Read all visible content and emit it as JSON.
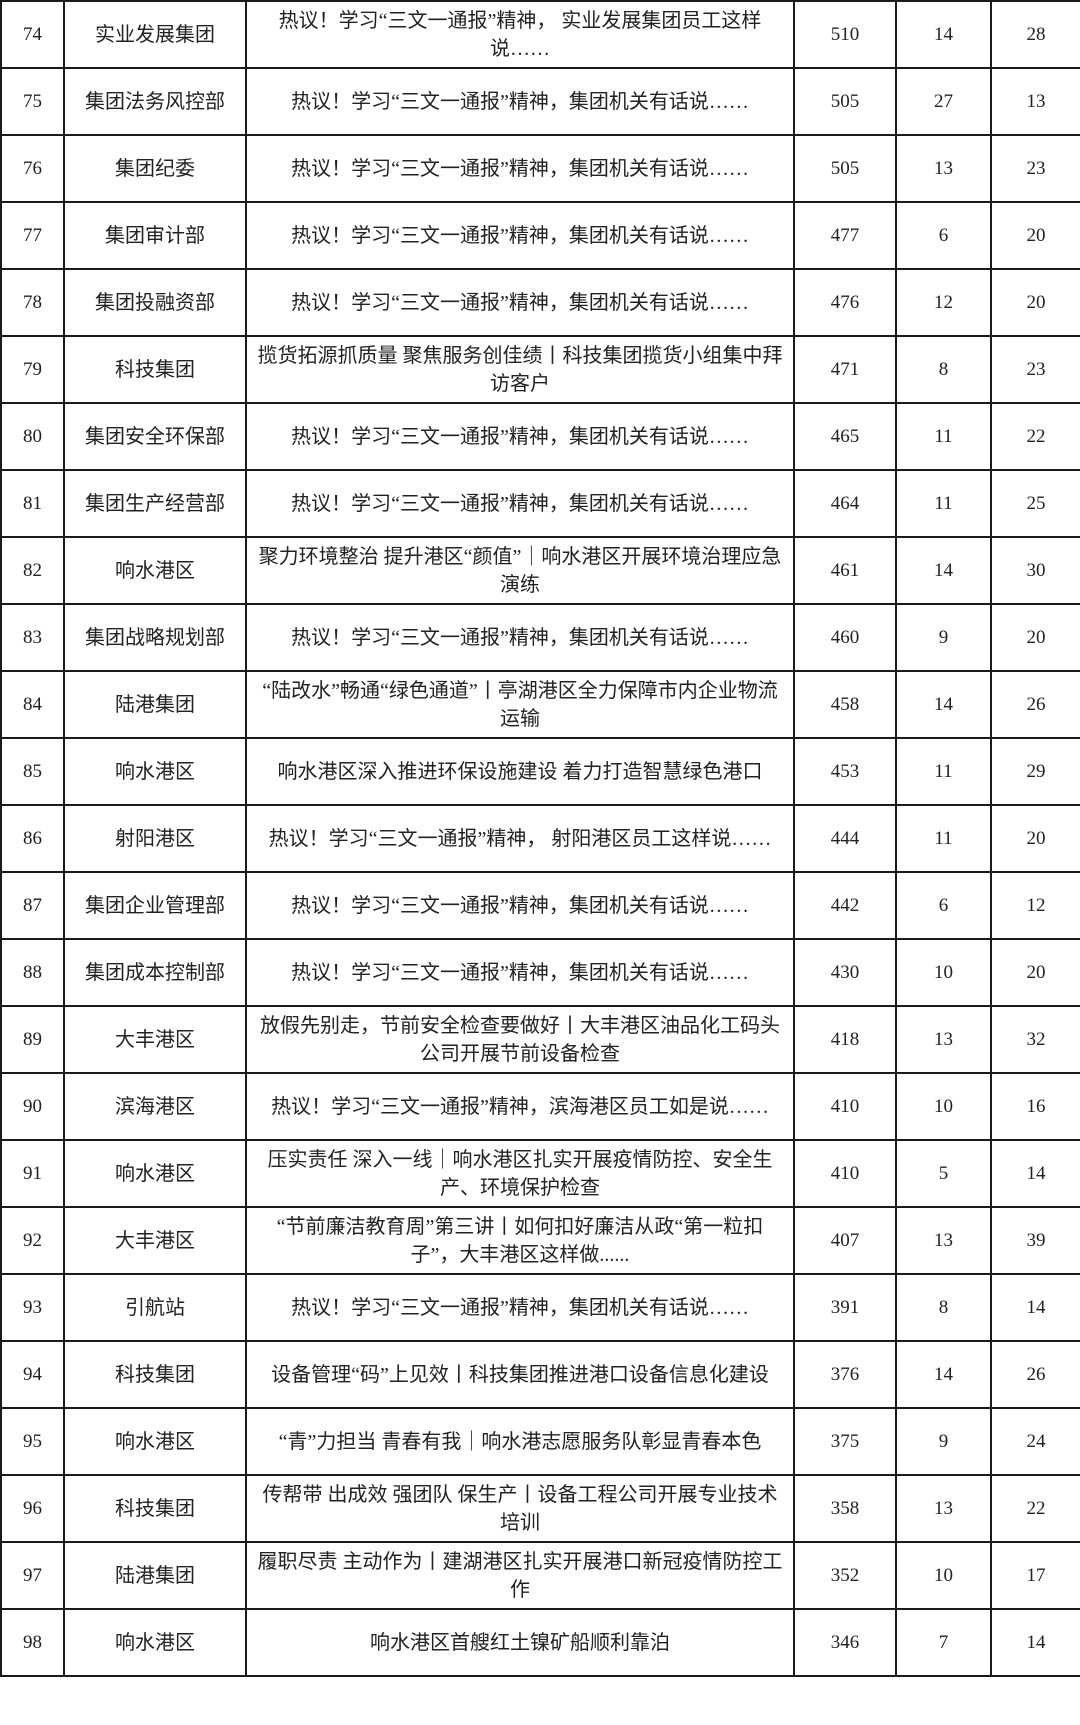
{
  "rows": [
    {
      "rank": "74",
      "unit": "实业发展集团",
      "title": "热议！学习“三文一通报”精神， 实业发展集团员工这样说……",
      "reads": "510",
      "likes": "14",
      "looks": "28"
    },
    {
      "rank": "75",
      "unit": "集团法务风控部",
      "title": "热议！学习“三文一通报”精神，集团机关有话说……",
      "reads": "505",
      "likes": "27",
      "looks": "13"
    },
    {
      "rank": "76",
      "unit": "集团纪委",
      "title": "热议！学习“三文一通报”精神，集团机关有话说……",
      "reads": "505",
      "likes": "13",
      "looks": "23"
    },
    {
      "rank": "77",
      "unit": "集团审计部",
      "title": "热议！学习“三文一通报”精神，集团机关有话说……",
      "reads": "477",
      "likes": "6",
      "looks": "20"
    },
    {
      "rank": "78",
      "unit": "集团投融资部",
      "title": "热议！学习“三文一通报”精神，集团机关有话说……",
      "reads": "476",
      "likes": "12",
      "looks": "20"
    },
    {
      "rank": "79",
      "unit": "科技集团",
      "title": "揽货拓源抓质量 聚焦服务创佳绩丨科技集团揽货小组集中拜访客户",
      "reads": "471",
      "likes": "8",
      "looks": "23"
    },
    {
      "rank": "80",
      "unit": "集团安全环保部",
      "title": "热议！学习“三文一通报”精神，集团机关有话说……",
      "reads": "465",
      "likes": "11",
      "looks": "22"
    },
    {
      "rank": "81",
      "unit": "集团生产经营部",
      "title": "热议！学习“三文一通报”精神，集团机关有话说……",
      "reads": "464",
      "likes": "11",
      "looks": "25"
    },
    {
      "rank": "82",
      "unit": "响水港区",
      "title": "聚力环境整治 提升港区“颜值”｜响水港区开展环境治理应急演练",
      "reads": "461",
      "likes": "14",
      "looks": "30"
    },
    {
      "rank": "83",
      "unit": "集团战略规划部",
      "title": "热议！学习“三文一通报”精神，集团机关有话说……",
      "reads": "460",
      "likes": "9",
      "looks": "20"
    },
    {
      "rank": "84",
      "unit": "陆港集团",
      "title": "“陆改水”畅通“绿色通道”丨亭湖港区全力保障市内企业物流运输",
      "reads": "458",
      "likes": "14",
      "looks": "26"
    },
    {
      "rank": "85",
      "unit": "响水港区",
      "title": "响水港区深入推进环保设施建设 着力打造智慧绿色港口",
      "reads": "453",
      "likes": "11",
      "looks": "29"
    },
    {
      "rank": "86",
      "unit": "射阳港区",
      "title": "热议！学习“三文一通报”精神， 射阳港区员工这样说……",
      "reads": "444",
      "likes": "11",
      "looks": "20"
    },
    {
      "rank": "87",
      "unit": "集团企业管理部",
      "title": "热议！学习“三文一通报”精神，集团机关有话说……",
      "reads": "442",
      "likes": "6",
      "looks": "12"
    },
    {
      "rank": "88",
      "unit": "集团成本控制部",
      "title": "热议！学习“三文一通报”精神，集团机关有话说……",
      "reads": "430",
      "likes": "10",
      "looks": "20"
    },
    {
      "rank": "89",
      "unit": "大丰港区",
      "title": "放假先别走，节前安全检查要做好丨大丰港区油品化工码头公司开展节前设备检查",
      "reads": "418",
      "likes": "13",
      "looks": "32"
    },
    {
      "rank": "90",
      "unit": "滨海港区",
      "title": "热议！学习“三文一通报”精神，滨海港区员工如是说……",
      "reads": "410",
      "likes": "10",
      "looks": "16"
    },
    {
      "rank": "91",
      "unit": "响水港区",
      "title": "压实责任 深入一线｜响水港区扎实开展疫情防控、安全生产、环境保护检查",
      "reads": "410",
      "likes": "5",
      "looks": "14"
    },
    {
      "rank": "92",
      "unit": "大丰港区",
      "title": "“节前廉洁教育周”第三讲丨如何扣好廉洁从政“第一粒扣子”，大丰港区这样做......",
      "reads": "407",
      "likes": "13",
      "looks": "39"
    },
    {
      "rank": "93",
      "unit": "引航站",
      "title": "热议！学习“三文一通报”精神，集团机关有话说……",
      "reads": "391",
      "likes": "8",
      "looks": "14"
    },
    {
      "rank": "94",
      "unit": "科技集团",
      "title": "设备管理“码”上见效丨科技集团推进港口设备信息化建设",
      "reads": "376",
      "likes": "14",
      "looks": "26"
    },
    {
      "rank": "95",
      "unit": "响水港区",
      "title": "“青”力担当 青春有我｜响水港志愿服务队彰显青春本色",
      "reads": "375",
      "likes": "9",
      "looks": "24"
    },
    {
      "rank": "96",
      "unit": "科技集团",
      "title": "传帮带 出成效 强团队 保生产丨设备工程公司开展专业技术培训",
      "reads": "358",
      "likes": "13",
      "looks": "22"
    },
    {
      "rank": "97",
      "unit": "陆港集团",
      "title": "履职尽责 主动作为丨建湖港区扎实开展港口新冠疫情防控工作",
      "reads": "352",
      "likes": "10",
      "looks": "17"
    },
    {
      "rank": "98",
      "unit": "响水港区",
      "title": "响水港区首艘红土镍矿船顺利靠泊",
      "reads": "346",
      "likes": "7",
      "looks": "14"
    }
  ]
}
